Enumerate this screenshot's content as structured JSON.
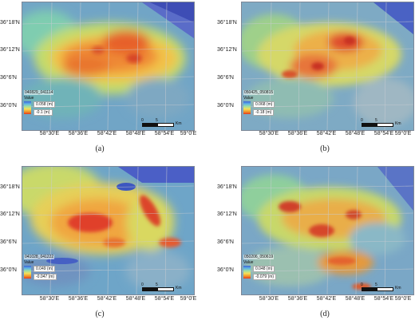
{
  "lat_labels": [
    "36°18'N",
    "36°12'N",
    "36°6'N",
    "36°0'N"
  ],
  "lon_labels": [
    "58°30'E",
    "58°36'E",
    "58°42'E",
    "58°48'E",
    "58°54'E",
    "59°0'E"
  ],
  "legend_title": "Value",
  "scale": {
    "t0": "0",
    "t1": "5",
    "t2": "10",
    "unit": "Km"
  },
  "panels": [
    {
      "caption": "(a)",
      "pair_id": "040829_041114",
      "max": "0.058 (m)",
      "min": "-0.1 (m)"
    },
    {
      "caption": "(b)",
      "pair_id": "050425_050815",
      "max": "0.068 (m)",
      "min": "-0.18 (m)"
    },
    {
      "caption": "(c)",
      "pair_id": "041028_041222",
      "max": "0.049 (m)",
      "min": "-0.047 (m)"
    },
    {
      "caption": "(d)",
      "pair_id": "050206_050619",
      "max": "0.048 (m)",
      "min": "-0.079 (m)"
    }
  ]
}
